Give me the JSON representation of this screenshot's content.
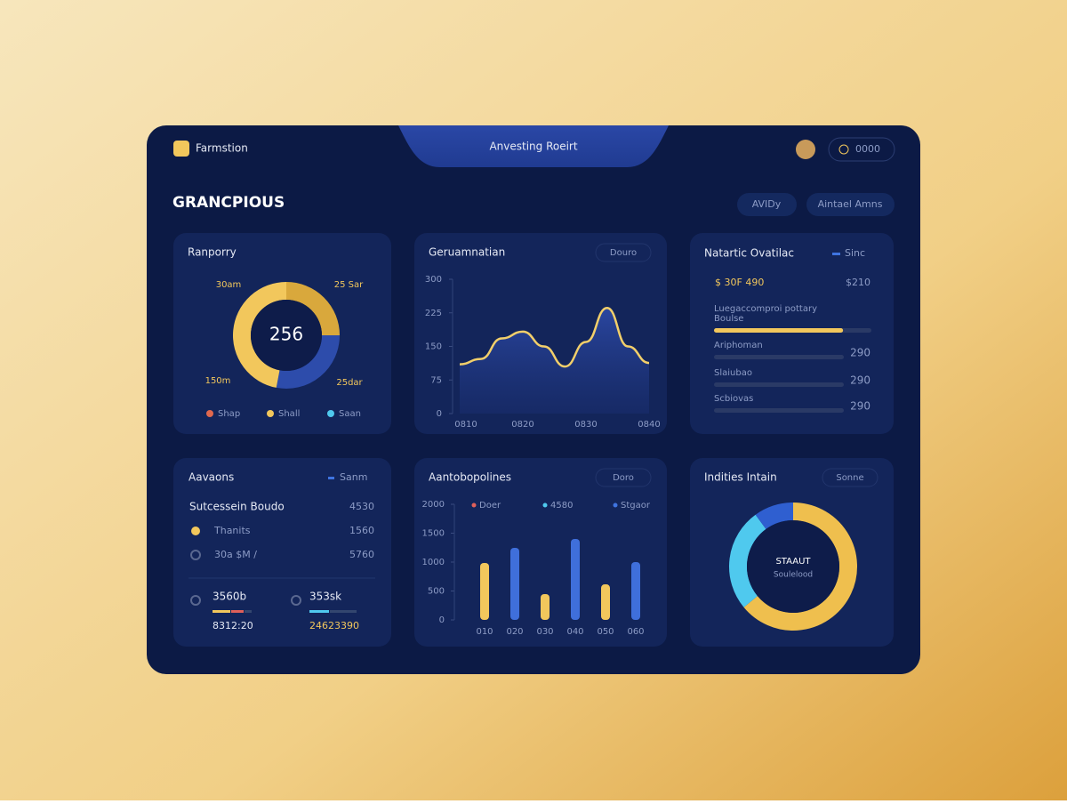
{
  "header": {
    "brand": "Farmstion",
    "tab": "Anvesting Roeirt",
    "button": "0000"
  },
  "page": {
    "title": "GRANCPIOUS",
    "actions": [
      "AVIDy",
      "Aintael Amns"
    ]
  },
  "summary": {
    "title": "Natartic Ovatilac",
    "badge": "Sinc",
    "amount": "$ 30F 490",
    "amount_right": "$210",
    "items": [
      {
        "lines": [
          "Luegaccomproi pottary",
          "Boulse"
        ],
        "progress": 82
      },
      {
        "lines": [
          "Ariphoman"
        ],
        "value": "290"
      },
      {
        "lines": [
          "Slaiubao"
        ],
        "value": "290"
      },
      {
        "lines": [
          "Scbiovas"
        ],
        "value": "290"
      }
    ]
  },
  "accounts": {
    "title": "Aavaons",
    "badge": "Sanm",
    "rows": [
      [
        "Sutcessein Boudo",
        "4530"
      ],
      [
        "Thanits",
        "1560"
      ],
      [
        "30a $M /",
        "5760"
      ]
    ],
    "tiles": [
      [
        "3560b",
        "8312:20"
      ],
      [
        "353sk",
        "24623390"
      ]
    ]
  },
  "chart_data": [
    {
      "type": "pie",
      "title": "Ranporry",
      "center_label": [
        "256"
      ],
      "values": [
        25,
        28,
        47
      ],
      "colors": [
        "#d9a83c",
        "#2d4cab",
        "#f2c75c"
      ],
      "annotations": [
        "30am",
        "25 Sar",
        "150m",
        "25dar"
      ],
      "categories": [
        "Shap",
        "Shall",
        "Saan"
      ],
      "legend_colors": [
        "#e0684e",
        "#f2c75c",
        "#4fc9ee"
      ]
    },
    {
      "type": "line",
      "title": "Geruamnatian",
      "badge": "Douro",
      "categories": [
        "0810",
        null,
        null,
        "0820",
        null,
        null,
        "0830",
        null,
        null,
        "0840"
      ],
      "values": [
        110,
        122,
        168,
        183,
        150,
        105,
        160,
        236,
        150,
        113
      ],
      "color": "#f2cf6a",
      "ylim": [
        0,
        300
      ],
      "yticks": [
        0,
        75,
        150,
        225,
        300
      ]
    },
    {
      "type": "bar",
      "title": "Aantobopolines",
      "badge": "Doro",
      "legend": [
        {
          "name": "Doer",
          "color": "#e0605a"
        },
        {
          "name": "4580",
          "color": "#4fc9ee"
        },
        {
          "name": "Stgaor",
          "color": "#3f74e0"
        }
      ],
      "categories": [
        "010",
        "020",
        "030",
        "040",
        "050",
        "060"
      ],
      "values": [
        985,
        1246,
        446,
        1400,
        615,
        1000
      ],
      "colors": [
        "#f2c75c",
        "#3f6fdb",
        "#f2c75c",
        "#3f6fdb",
        "#f2c75c",
        "#3f6fdb"
      ],
      "ylim": [
        0,
        2000
      ],
      "yticks": [
        0,
        500,
        1000,
        1500,
        2000
      ]
    },
    {
      "type": "pie",
      "title": "Indities Intain",
      "badge": "Sonne",
      "center_label": [
        "STAAUT",
        "Soulelood"
      ],
      "values": [
        64,
        26,
        10
      ],
      "colors": [
        "#efbf4e",
        "#4fc9ee",
        "#2f5fd0"
      ]
    }
  ]
}
